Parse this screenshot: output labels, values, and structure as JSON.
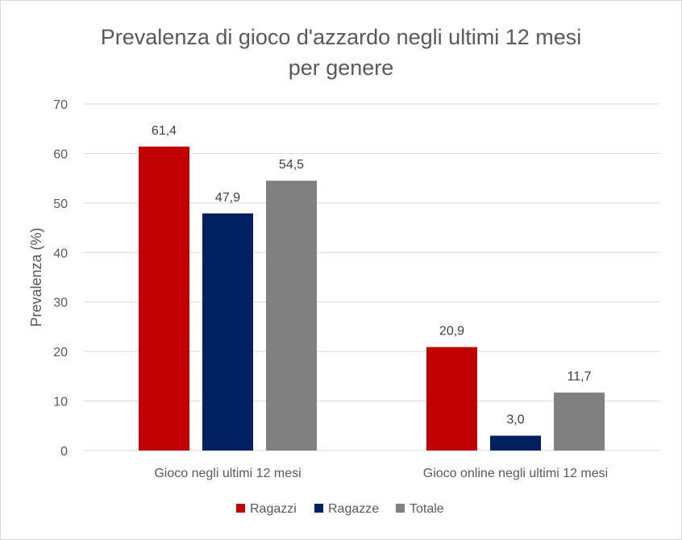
{
  "chart_data": {
    "type": "bar",
    "title": [
      "Prevalenza di gioco d'azzardo negli ultimi 12 mesi",
      "per genere"
    ],
    "ylabel": "Prevalenza (%)",
    "xlabel": "",
    "ylim": [
      0,
      70
    ],
    "yticks": [
      0,
      10,
      20,
      30,
      40,
      50,
      60,
      70
    ],
    "categories": [
      "Gioco negli ultimi 12 mesi",
      "Gioco online negli ultimi 12 mesi"
    ],
    "series": [
      {
        "name": "Ragazzi",
        "color": "#c00000",
        "values": [
          61.4,
          20.9
        ],
        "labels": [
          "61,4",
          "20,9"
        ]
      },
      {
        "name": "Ragazze",
        "color": "#002060",
        "values": [
          47.9,
          3.0
        ],
        "labels": [
          "47,9",
          "3,0"
        ]
      },
      {
        "name": "Totale",
        "color": "#808080",
        "values": [
          54.5,
          11.7
        ],
        "labels": [
          "54,5",
          "11,7"
        ]
      }
    ],
    "grid": true,
    "legend": "bottom"
  }
}
